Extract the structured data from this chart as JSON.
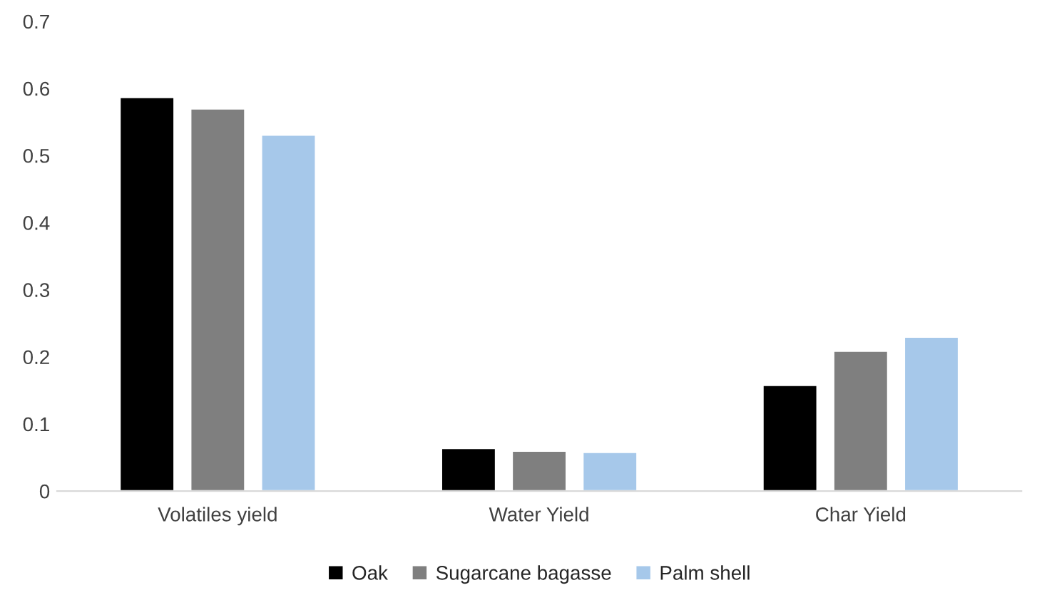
{
  "chart_data": {
    "type": "bar",
    "categories": [
      "Volatiles yield",
      "Water Yield",
      "Char Yield"
    ],
    "series": [
      {
        "name": "Oak",
        "color": "#000000",
        "values": [
          0.587,
          0.064,
          0.158
        ]
      },
      {
        "name": "Sugarcane bagasse",
        "color": "#7f7f7f",
        "values": [
          0.57,
          0.06,
          0.209
        ]
      },
      {
        "name": "Palm shell",
        "color": "#a6c8ea",
        "values": [
          0.531,
          0.058,
          0.23
        ]
      }
    ],
    "ylim": [
      0,
      0.7
    ],
    "yticks": [
      {
        "value": 0,
        "label": "0"
      },
      0.1,
      0.2,
      0.3,
      0.4,
      0.5,
      0.6,
      0.7
    ],
    "grid": false,
    "legend": "bottom"
  }
}
